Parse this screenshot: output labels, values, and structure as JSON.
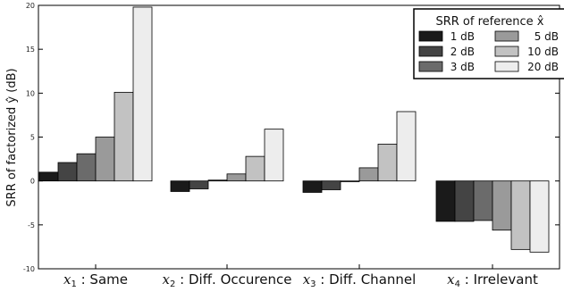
{
  "chart_data": {
    "type": "bar",
    "title": "",
    "ylabel": "SRR of factorized ŷ (dB)",
    "xlabel": "",
    "ylim": [
      -10,
      20
    ],
    "yticks": [
      -10,
      -5,
      0,
      5,
      10,
      15,
      20
    ],
    "categories": [
      {
        "var": "x",
        "sub": "1",
        "text": " : Same"
      },
      {
        "var": "x",
        "sub": "2",
        "text": " : Diff. Occurence"
      },
      {
        "var": "x",
        "sub": "3",
        "text": " : Diff. Channel"
      },
      {
        "var": "x",
        "sub": "4",
        "text": " : Irrelevant"
      }
    ],
    "legend": {
      "title": "SRR of reference x̂",
      "position": "top-right"
    },
    "grid": false,
    "series": [
      {
        "name": "1 dB",
        "color": "#1a1a1a",
        "values": [
          1.0,
          -1.2,
          -1.3,
          -4.6
        ]
      },
      {
        "name": "2 dB",
        "color": "#444444",
        "values": [
          2.1,
          -0.9,
          -1.0,
          -4.6
        ]
      },
      {
        "name": "3 dB",
        "color": "#6b6b6b",
        "values": [
          3.1,
          0.1,
          0.0,
          -4.5
        ]
      },
      {
        "name": "5 dB",
        "color": "#9a9a9a",
        "values": [
          5.0,
          0.8,
          1.5,
          -5.6
        ]
      },
      {
        "name": "10 dB",
        "color": "#c2c2c2",
        "values": [
          10.1,
          2.8,
          4.2,
          -7.8
        ]
      },
      {
        "name": "20 dB",
        "color": "#ededed",
        "values": [
          19.8,
          5.9,
          7.9,
          -8.1
        ]
      }
    ]
  }
}
